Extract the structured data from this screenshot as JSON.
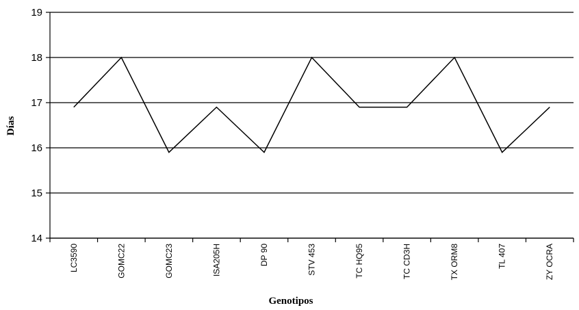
{
  "chart_data": {
    "type": "line",
    "categories": [
      "LC3590",
      "GOMC22",
      "GOMC23",
      "ISA205H",
      "DP 90",
      "STV 453",
      "TC HQ95",
      "TC CD3H",
      "TX ORM8",
      "TL 407",
      "ZY OCRA"
    ],
    "series": [
      {
        "values": [
          16.9,
          18.0,
          15.9,
          16.9,
          15.9,
          18.0,
          16.9,
          16.9,
          18.0,
          15.9,
          16.9
        ]
      }
    ],
    "xlabel": "Genotipos",
    "ylabel": "Días",
    "ylim": [
      14,
      19
    ],
    "yticks": [
      14,
      15,
      16,
      17,
      18,
      19
    ],
    "grid": "horizontal",
    "line_color": "#000000"
  }
}
